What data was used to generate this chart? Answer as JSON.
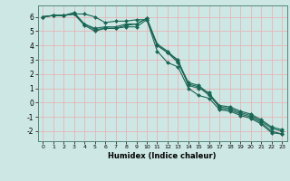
{
  "title": "",
  "xlabel": "Humidex (Indice chaleur)",
  "background_color": "#cde8e4",
  "grid_color": "#e8b4b8",
  "line_color": "#1a6655",
  "marker_color": "#1a6655",
  "xlim": [
    -0.5,
    23.5
  ],
  "ylim": [
    -2.7,
    6.8
  ],
  "xticks": [
    0,
    1,
    2,
    3,
    4,
    5,
    6,
    7,
    8,
    9,
    10,
    11,
    12,
    13,
    14,
    15,
    16,
    17,
    18,
    19,
    20,
    21,
    22,
    23
  ],
  "yticks": [
    -2,
    -1,
    0,
    1,
    2,
    3,
    4,
    5,
    6
  ],
  "series": [
    [
      6.0,
      6.1,
      6.1,
      6.2,
      6.2,
      6.0,
      5.6,
      5.7,
      5.7,
      5.8,
      5.8,
      4.0,
      3.5,
      3.0,
      1.2,
      1.0,
      0.7,
      -0.4,
      -0.5,
      -0.8,
      -1.0,
      -1.4,
      -2.0,
      -2.2
    ],
    [
      6.0,
      6.1,
      6.1,
      6.2,
      5.4,
      5.0,
      5.2,
      5.2,
      5.3,
      5.3,
      5.8,
      3.6,
      2.8,
      2.5,
      1.0,
      0.5,
      0.3,
      -0.5,
      -0.6,
      -0.9,
      -1.1,
      -1.5,
      -2.1,
      -2.2
    ],
    [
      6.0,
      6.1,
      6.1,
      6.3,
      5.5,
      5.1,
      5.2,
      5.2,
      5.4,
      5.5,
      5.9,
      4.0,
      3.5,
      2.8,
      1.3,
      1.1,
      0.5,
      -0.3,
      -0.4,
      -0.7,
      -0.9,
      -1.3,
      -1.8,
      -2.0
    ],
    [
      6.0,
      6.1,
      6.1,
      6.2,
      5.5,
      5.2,
      5.3,
      5.3,
      5.5,
      5.5,
      5.9,
      4.1,
      3.6,
      2.9,
      1.4,
      1.2,
      0.6,
      -0.2,
      -0.3,
      -0.6,
      -0.8,
      -1.2,
      -1.7,
      -1.9
    ]
  ]
}
